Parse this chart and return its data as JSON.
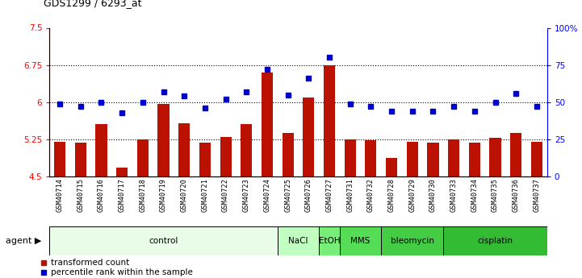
{
  "title": "GDS1299 / 6293_at",
  "samples": [
    "GSM40714",
    "GSM40715",
    "GSM40716",
    "GSM40717",
    "GSM40718",
    "GSM40719",
    "GSM40720",
    "GSM40721",
    "GSM40722",
    "GSM40723",
    "GSM40724",
    "GSM40725",
    "GSM40726",
    "GSM40727",
    "GSM40731",
    "GSM40732",
    "GSM40728",
    "GSM40729",
    "GSM40730",
    "GSM40733",
    "GSM40734",
    "GSM40735",
    "GSM40736",
    "GSM40737"
  ],
  "bar_values": [
    5.2,
    5.18,
    5.55,
    4.68,
    5.25,
    5.97,
    5.58,
    5.18,
    5.3,
    5.55,
    6.6,
    5.38,
    6.1,
    6.75,
    5.25,
    5.23,
    4.88,
    5.2,
    5.18,
    5.25,
    5.18,
    5.28,
    5.38,
    5.2
  ],
  "dot_values": [
    49,
    47,
    50,
    43,
    50,
    57,
    54,
    46,
    52,
    57,
    72,
    55,
    66,
    80,
    49,
    47,
    44,
    44,
    44,
    47,
    44,
    50,
    56,
    47
  ],
  "agents": [
    {
      "label": "control",
      "start": 0,
      "end": 11,
      "color": "#e0f5e0"
    },
    {
      "label": "NaCl",
      "start": 11,
      "end": 13,
      "color": "#bbffbb"
    },
    {
      "label": "EtOH",
      "start": 13,
      "end": 14,
      "color": "#66ee66"
    },
    {
      "label": "MMS",
      "start": 14,
      "end": 16,
      "color": "#44cc44"
    },
    {
      "label": "bleomycin",
      "start": 16,
      "end": 19,
      "color": "#33bb33"
    },
    {
      "label": "cisplatin",
      "start": 19,
      "end": 24,
      "color": "#22aa22"
    }
  ],
  "ylim_left": [
    4.5,
    7.5
  ],
  "ylim_right": [
    0,
    100
  ],
  "yticks_left": [
    4.5,
    5.25,
    6.0,
    6.75,
    7.5
  ],
  "ytick_labels_left": [
    "4.5",
    "5.25",
    "6",
    "6.75",
    "7.5"
  ],
  "yticks_right": [
    0,
    25,
    50,
    75,
    100
  ],
  "ytick_labels_right": [
    "0",
    "25",
    "50",
    "75",
    "100%"
  ],
  "hlines": [
    5.25,
    6.0,
    6.75
  ],
  "bar_color": "#bb1100",
  "dot_color": "#0000cc",
  "bar_bottom": 4.5,
  "legend_bar_label": "transformed count",
  "legend_dot_label": "percentile rank within the sample",
  "agent_row_label": "agent",
  "bg_color": "#ffffff"
}
